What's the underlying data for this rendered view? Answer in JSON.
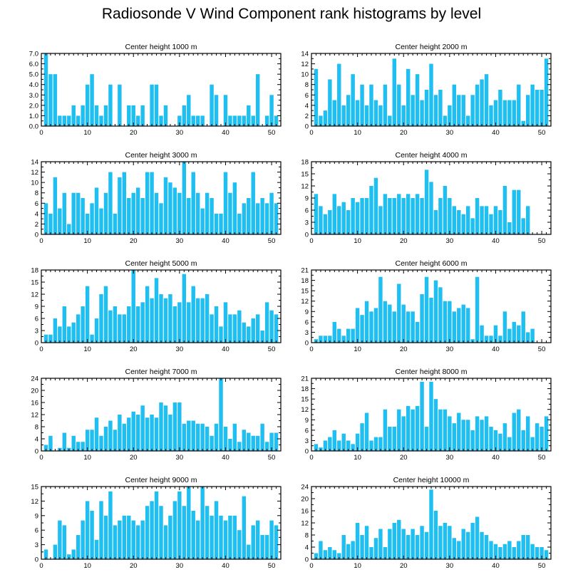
{
  "title": "Radiosonde V Wind Component rank histograms by level",
  "colors": {
    "bar": "#1fbff2",
    "axis": "#000000",
    "background": "#ffffff"
  },
  "chart_data": [
    {
      "type": "bar",
      "title": "Center height 1000 m",
      "xlim": [
        0,
        52
      ],
      "xticks": [
        0,
        10,
        20,
        30,
        40,
        50
      ],
      "ylim": [
        0,
        7
      ],
      "yticks": [
        0,
        1,
        2,
        3,
        4,
        5,
        6,
        7
      ],
      "ytick_labels": [
        "0.0",
        "1.0",
        "2.0",
        "3.0",
        "4.0",
        "5.0",
        "6.0",
        "7.0"
      ],
      "x": [
        1,
        2,
        3,
        4,
        5,
        6,
        7,
        8,
        9,
        10,
        11,
        12,
        13,
        14,
        15,
        16,
        17,
        18,
        19,
        20,
        21,
        22,
        23,
        24,
        25,
        26,
        27,
        28,
        29,
        30,
        31,
        32,
        33,
        34,
        35,
        36,
        37,
        38,
        39,
        40,
        41,
        42,
        43,
        44,
        45,
        46,
        47,
        48,
        49,
        50,
        51
      ],
      "values": [
        7,
        5,
        5,
        1,
        1,
        1,
        2,
        1,
        2,
        4,
        5,
        2,
        1,
        2,
        4,
        0,
        4,
        0,
        2,
        2,
        1,
        2,
        0,
        4,
        4,
        1,
        2,
        0,
        0,
        1,
        2,
        3,
        1,
        1,
        1,
        0,
        4,
        3,
        0,
        3,
        1,
        1,
        1,
        1,
        2,
        1,
        5,
        0,
        1,
        3,
        1
      ]
    },
    {
      "type": "bar",
      "title": "Center height 2000 m",
      "xlim": [
        0,
        52
      ],
      "xticks": [
        0,
        10,
        20,
        30,
        40,
        50
      ],
      "ylim": [
        0,
        14
      ],
      "yticks": [
        0,
        2,
        4,
        6,
        8,
        10,
        12,
        14
      ],
      "ytick_labels": [
        "0",
        "2",
        "4",
        "6",
        "8",
        "10",
        "12",
        "14"
      ],
      "x": [
        1,
        2,
        3,
        4,
        5,
        6,
        7,
        8,
        9,
        10,
        11,
        12,
        13,
        14,
        15,
        16,
        17,
        18,
        19,
        20,
        21,
        22,
        23,
        24,
        25,
        26,
        27,
        28,
        29,
        30,
        31,
        32,
        33,
        34,
        35,
        36,
        37,
        38,
        39,
        40,
        41,
        42,
        43,
        44,
        45,
        46,
        47,
        48,
        49,
        50,
        51
      ],
      "values": [
        11,
        2,
        3,
        9,
        5,
        12,
        4,
        6,
        10,
        5,
        8,
        4,
        8,
        5,
        4,
        8,
        2,
        13,
        8,
        4,
        11,
        6,
        10,
        5,
        7,
        12,
        6,
        7,
        2,
        4,
        8,
        6,
        6,
        2,
        6,
        8,
        9,
        10,
        4,
        5,
        7,
        5,
        5,
        5,
        8,
        1,
        6,
        8,
        7,
        7,
        13
      ]
    },
    {
      "type": "bar",
      "title": "Center height 3000 m",
      "xlim": [
        0,
        52
      ],
      "xticks": [
        0,
        10,
        20,
        30,
        40,
        50
      ],
      "ylim": [
        0,
        14
      ],
      "yticks": [
        0,
        2,
        4,
        6,
        8,
        10,
        12,
        14
      ],
      "ytick_labels": [
        "0",
        "2",
        "4",
        "6",
        "8",
        "10",
        "12",
        "14"
      ],
      "x": [
        1,
        2,
        3,
        4,
        5,
        6,
        7,
        8,
        9,
        10,
        11,
        12,
        13,
        14,
        15,
        16,
        17,
        18,
        19,
        20,
        21,
        22,
        23,
        24,
        25,
        26,
        27,
        28,
        29,
        30,
        31,
        32,
        33,
        34,
        35,
        36,
        37,
        38,
        39,
        40,
        41,
        42,
        43,
        44,
        45,
        46,
        47,
        48,
        49,
        50,
        51
      ],
      "values": [
        6,
        4,
        11,
        5,
        8,
        2,
        8,
        8,
        7,
        4,
        6,
        9,
        5,
        8,
        12,
        4,
        11,
        12,
        7,
        8,
        9,
        7,
        12,
        12,
        8,
        6,
        11,
        10,
        9,
        8,
        14,
        7,
        12,
        8,
        5,
        8,
        7,
        4,
        4,
        12,
        8,
        10,
        4,
        6,
        7,
        12,
        6,
        7,
        6,
        8,
        6
      ]
    },
    {
      "type": "bar",
      "title": "Center height 4000 m",
      "xlim": [
        0,
        52
      ],
      "xticks": [
        0,
        10,
        20,
        30,
        40,
        50
      ],
      "ylim": [
        0,
        18
      ],
      "yticks": [
        0,
        3,
        6,
        9,
        12,
        15,
        18
      ],
      "ytick_labels": [
        "0",
        "3",
        "6",
        "9",
        "12",
        "15",
        "18"
      ],
      "x": [
        1,
        2,
        3,
        4,
        5,
        6,
        7,
        8,
        9,
        10,
        11,
        12,
        13,
        14,
        15,
        16,
        17,
        18,
        19,
        20,
        21,
        22,
        23,
        24,
        25,
        26,
        27,
        28,
        29,
        30,
        31,
        32,
        33,
        34,
        35,
        36,
        37,
        38,
        39,
        40,
        41,
        42,
        43,
        44,
        45,
        46,
        47,
        48,
        49,
        50,
        51
      ],
      "values": [
        10,
        7,
        5,
        6,
        10,
        7,
        8,
        6,
        9,
        8,
        9,
        9,
        12,
        14,
        7,
        10,
        9,
        9,
        10,
        9,
        10,
        9,
        10,
        9,
        16,
        13,
        6,
        9,
        12,
        9,
        7,
        6,
        5,
        7,
        4,
        9,
        7,
        7,
        5,
        7,
        6,
        12,
        3,
        11,
        11,
        4,
        7,
        0,
        0,
        0,
        0
      ]
    },
    {
      "type": "bar",
      "title": "Center height 5000 m",
      "xlim": [
        0,
        52
      ],
      "xticks": [
        0,
        10,
        20,
        30,
        40,
        50
      ],
      "ylim": [
        0,
        18
      ],
      "yticks": [
        0,
        3,
        6,
        9,
        12,
        15,
        18
      ],
      "ytick_labels": [
        "0",
        "3",
        "6",
        "9",
        "12",
        "15",
        "18"
      ],
      "x": [
        1,
        2,
        3,
        4,
        5,
        6,
        7,
        8,
        9,
        10,
        11,
        12,
        13,
        14,
        15,
        16,
        17,
        18,
        19,
        20,
        21,
        22,
        23,
        24,
        25,
        26,
        27,
        28,
        29,
        30,
        31,
        32,
        33,
        34,
        35,
        36,
        37,
        38,
        39,
        40,
        41,
        42,
        43,
        44,
        45,
        46,
        47,
        48,
        49,
        50,
        51
      ],
      "values": [
        2,
        2,
        6,
        4,
        9,
        4,
        5,
        7,
        9,
        14,
        2,
        6,
        12,
        14,
        8,
        9,
        7,
        7,
        9,
        18,
        9,
        10,
        14,
        11,
        16,
        12,
        11,
        12,
        9,
        10,
        17,
        10,
        14,
        11,
        11,
        12,
        7,
        9,
        4,
        10,
        7,
        7,
        8,
        5,
        4,
        6,
        7,
        3,
        10,
        8,
        7
      ]
    },
    {
      "type": "bar",
      "title": "Center height 6000 m",
      "xlim": [
        0,
        52
      ],
      "xticks": [
        0,
        10,
        20,
        30,
        40,
        50
      ],
      "ylim": [
        0,
        21
      ],
      "yticks": [
        0,
        3,
        6,
        9,
        12,
        15,
        18,
        21
      ],
      "ytick_labels": [
        "0",
        "3",
        "6",
        "9",
        "12",
        "15",
        "18",
        "21"
      ],
      "x": [
        1,
        2,
        3,
        4,
        5,
        6,
        7,
        8,
        9,
        10,
        11,
        12,
        13,
        14,
        15,
        16,
        17,
        18,
        19,
        20,
        21,
        22,
        23,
        24,
        25,
        26,
        27,
        28,
        29,
        30,
        31,
        32,
        33,
        34,
        35,
        36,
        37,
        38,
        39,
        40,
        41,
        42,
        43,
        44,
        45,
        46,
        47,
        48,
        49,
        50,
        51
      ],
      "values": [
        1,
        2,
        2,
        2,
        6,
        4,
        2,
        4,
        4,
        10,
        8,
        12,
        9,
        10,
        19,
        12,
        11,
        9,
        17,
        11,
        9,
        9,
        6,
        14,
        19,
        13,
        18,
        16,
        12,
        12,
        9,
        10,
        11,
        10,
        1,
        19,
        5,
        2,
        2,
        5,
        2,
        9,
        4,
        6,
        5,
        9,
        3,
        4,
        0,
        0,
        0
      ]
    },
    {
      "type": "bar",
      "title": "Center height 7000 m",
      "xlim": [
        0,
        52
      ],
      "xticks": [
        0,
        10,
        20,
        30,
        40,
        50
      ],
      "ylim": [
        0,
        24
      ],
      "yticks": [
        0,
        4,
        8,
        12,
        16,
        20,
        24
      ],
      "ytick_labels": [
        "0",
        "4",
        "8",
        "12",
        "16",
        "20",
        "24"
      ],
      "x": [
        1,
        2,
        3,
        4,
        5,
        6,
        7,
        8,
        9,
        10,
        11,
        12,
        13,
        14,
        15,
        16,
        17,
        18,
        19,
        20,
        21,
        22,
        23,
        24,
        25,
        26,
        27,
        28,
        29,
        30,
        31,
        32,
        33,
        34,
        35,
        36,
        37,
        38,
        39,
        40,
        41,
        42,
        43,
        44,
        45,
        46,
        47,
        48,
        49,
        50,
        51
      ],
      "values": [
        2,
        5,
        0,
        1,
        6,
        1,
        5,
        3,
        3,
        7,
        7,
        11,
        5,
        8,
        10,
        7,
        12,
        9,
        11,
        13,
        12,
        15,
        11,
        12,
        11,
        16,
        15,
        12,
        16,
        16,
        9,
        10,
        10,
        9,
        9,
        8,
        5,
        9,
        24,
        8,
        4,
        9,
        3,
        7,
        6,
        5,
        5,
        9,
        3,
        6,
        6
      ]
    },
    {
      "type": "bar",
      "title": "Center height 8000 m",
      "xlim": [
        0,
        52
      ],
      "xticks": [
        0,
        10,
        20,
        30,
        40,
        50
      ],
      "ylim": [
        0,
        21
      ],
      "yticks": [
        0,
        3,
        6,
        9,
        12,
        15,
        18,
        21
      ],
      "ytick_labels": [
        "0",
        "3",
        "6",
        "9",
        "12",
        "15",
        "18",
        "21"
      ],
      "x": [
        1,
        2,
        3,
        4,
        5,
        6,
        7,
        8,
        9,
        10,
        11,
        12,
        13,
        14,
        15,
        16,
        17,
        18,
        19,
        20,
        21,
        22,
        23,
        24,
        25,
        26,
        27,
        28,
        29,
        30,
        31,
        32,
        33,
        34,
        35,
        36,
        37,
        38,
        39,
        40,
        41,
        42,
        43,
        44,
        45,
        46,
        47,
        48,
        49,
        50,
        51
      ],
      "values": [
        2,
        1,
        3,
        4,
        6,
        3,
        5,
        3,
        2,
        5,
        8,
        11,
        3,
        4,
        4,
        12,
        7,
        7,
        12,
        10,
        13,
        12,
        13,
        20,
        7,
        20,
        15,
        12,
        12,
        10,
        8,
        11,
        9,
        9,
        6,
        10,
        9,
        10,
        7,
        6,
        5,
        8,
        4,
        11,
        12,
        6,
        10,
        4,
        8,
        7,
        10
      ]
    },
    {
      "type": "bar",
      "title": "Center height 9000 m",
      "xlim": [
        0,
        52
      ],
      "xticks": [
        0,
        10,
        20,
        30,
        40,
        50
      ],
      "ylim": [
        0,
        15
      ],
      "yticks": [
        0,
        3,
        6,
        9,
        12,
        15
      ],
      "ytick_labels": [
        "0",
        "3",
        "6",
        "9",
        "12",
        "15"
      ],
      "x": [
        1,
        2,
        3,
        4,
        5,
        6,
        7,
        8,
        9,
        10,
        11,
        12,
        13,
        14,
        15,
        16,
        17,
        18,
        19,
        20,
        21,
        22,
        23,
        24,
        25,
        26,
        27,
        28,
        29,
        30,
        31,
        32,
        33,
        34,
        35,
        36,
        37,
        38,
        39,
        40,
        41,
        42,
        43,
        44,
        45,
        46,
        47,
        48,
        49,
        50,
        51
      ],
      "values": [
        2,
        0,
        3,
        8,
        7,
        1,
        2,
        5,
        8,
        12,
        10,
        4,
        12,
        9,
        14,
        7,
        8,
        9,
        9,
        8,
        7,
        8,
        11,
        12,
        14,
        11,
        7,
        9,
        12,
        14,
        11,
        15,
        10,
        8,
        15,
        11,
        9,
        12,
        9,
        8,
        9,
        9,
        6,
        13,
        3,
        7,
        8,
        5,
        5,
        8,
        7
      ]
    },
    {
      "type": "bar",
      "title": "Center height 10000 m",
      "xlim": [
        0,
        52
      ],
      "xticks": [
        0,
        10,
        20,
        30,
        40,
        50
      ],
      "ylim": [
        0,
        24
      ],
      "yticks": [
        0,
        4,
        8,
        12,
        16,
        20,
        24
      ],
      "ytick_labels": [
        "0",
        "4",
        "8",
        "12",
        "16",
        "20",
        "24"
      ],
      "x": [
        1,
        2,
        3,
        4,
        5,
        6,
        7,
        8,
        9,
        10,
        11,
        12,
        13,
        14,
        15,
        16,
        17,
        18,
        19,
        20,
        21,
        22,
        23,
        24,
        25,
        26,
        27,
        28,
        29,
        30,
        31,
        32,
        33,
        34,
        35,
        36,
        37,
        38,
        39,
        40,
        41,
        42,
        43,
        44,
        45,
        46,
        47,
        48,
        49,
        50,
        51
      ],
      "values": [
        2,
        6,
        3,
        4,
        3,
        2,
        8,
        5,
        6,
        12,
        8,
        11,
        4,
        7,
        10,
        4,
        10,
        12,
        13,
        10,
        8,
        10,
        8,
        11,
        9,
        23,
        16,
        11,
        12,
        11,
        7,
        6,
        10,
        9,
        12,
        14,
        9,
        8,
        6,
        5,
        4,
        5,
        6,
        4,
        6,
        8,
        8,
        5,
        4,
        4,
        3
      ]
    }
  ]
}
